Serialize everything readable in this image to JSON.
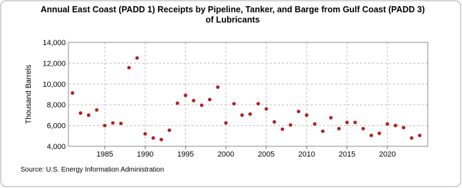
{
  "chart_data": {
    "type": "scatter",
    "title": "Annual East Coast (PADD 1) Receipts by Pipeline, Tanker, and Barge from Gulf Coast (PADD 3) of Lubricants",
    "y_label": "Thousand Barrels",
    "source": "Source: U.S. Energy Information Administration",
    "x": [
      1981,
      1982,
      1983,
      1984,
      1985,
      1986,
      1987,
      1988,
      1989,
      1990,
      1991,
      1992,
      1993,
      1994,
      1995,
      1996,
      1997,
      1998,
      1999,
      2000,
      2001,
      2002,
      2003,
      2004,
      2005,
      2006,
      2007,
      2008,
      2009,
      2010,
      2011,
      2012,
      2013,
      2014,
      2015,
      2016,
      2017,
      2018,
      2019,
      2020,
      2021,
      2022,
      2023,
      2024
    ],
    "series": [
      {
        "name": "Receipts",
        "color": "#b22222",
        "values": [
          9130,
          7200,
          7000,
          7500,
          6000,
          6250,
          6200,
          11570,
          12500,
          5200,
          4800,
          4650,
          5550,
          8150,
          8900,
          8400,
          7950,
          8500,
          9700,
          6250,
          8100,
          7000,
          7100,
          8100,
          7600,
          6350,
          5650,
          6050,
          7350,
          7000,
          6150,
          5450,
          6750,
          5700,
          6300,
          6300,
          5700,
          5050,
          5250,
          6150,
          6000,
          5800,
          4800,
          5050
        ]
      }
    ],
    "xlim": [
      1980.5,
      2025
    ],
    "xticks": [
      1985,
      1990,
      1995,
      2000,
      2005,
      2010,
      2015,
      2020
    ],
    "ylim": [
      4000,
      14000
    ],
    "yticks": [
      {
        "value": 4000,
        "label": "4,000"
      },
      {
        "value": 6000,
        "label": "6,000"
      },
      {
        "value": 8000,
        "label": "8,000"
      },
      {
        "value": 10000,
        "label": "10,000"
      },
      {
        "value": 12000,
        "label": "12,000"
      },
      {
        "value": 14000,
        "label": "14,000"
      }
    ],
    "grid": true
  }
}
